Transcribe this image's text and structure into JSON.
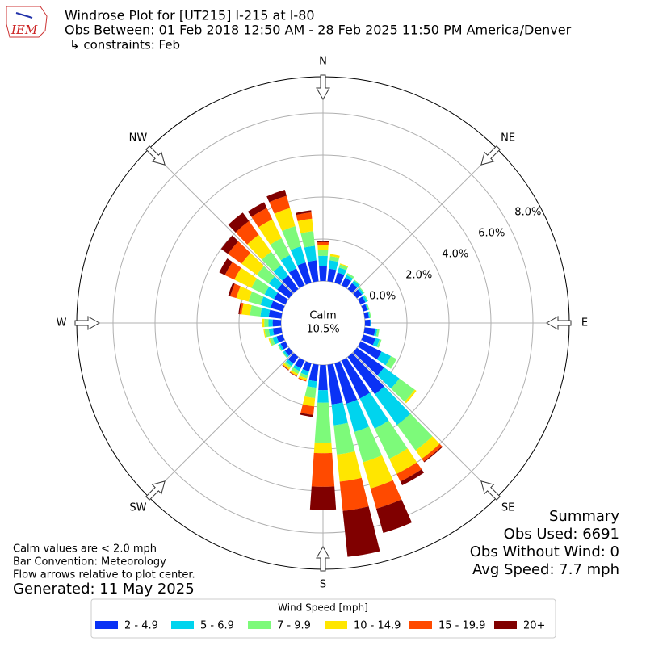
{
  "header": {
    "title": "Windrose Plot for [UT215] I-215 at I-80",
    "subtitle": "Obs Between: 01 Feb 2018 12:50 AM - 28 Feb 2025 11:50 PM America/Denver",
    "constraints": "↳ constraints: Feb",
    "logo": "IEM"
  },
  "chart_data": {
    "type": "windrose",
    "x": [
      0,
      10,
      20,
      30,
      40,
      50,
      60,
      70,
      80,
      90,
      100,
      110,
      120,
      130,
      140,
      150,
      160,
      170,
      180,
      190,
      200,
      210,
      220,
      230,
      240,
      250,
      260,
      270,
      280,
      290,
      300,
      310,
      320,
      330,
      340,
      350
    ],
    "xticks": [
      {
        "value": 0,
        "label": "N"
      },
      {
        "value": 45,
        "label": "NE"
      },
      {
        "value": 90,
        "label": "E"
      },
      {
        "value": 135,
        "label": "SE"
      },
      {
        "value": 180,
        "label": "S"
      },
      {
        "value": 225,
        "label": "SW"
      },
      {
        "value": 270,
        "label": "W"
      },
      {
        "value": 315,
        "label": "NW"
      }
    ],
    "ylim": [
      0,
      9.73
    ],
    "yticks": [
      {
        "value": 0,
        "label": "0.0%"
      },
      {
        "value": 2,
        "label": "2.0%"
      },
      {
        "value": 4,
        "label": "4.0%"
      },
      {
        "value": 6,
        "label": "6.0%"
      },
      {
        "value": 8,
        "label": "8.0%"
      }
    ],
    "grid": true,
    "calm_label": "Calm",
    "calm_value": "10.5%",
    "legend_title": "Wind Speed [mph]",
    "legend_position": "bottom",
    "series": [
      {
        "name": "2 - 4.9",
        "color": "#0a32f5",
        "values": [
          0.7,
          0.6,
          0.5,
          0.4,
          0.35,
          0.3,
          0.25,
          0.2,
          0.2,
          0.25,
          0.5,
          0.6,
          1.1,
          1.6,
          2.2,
          2.0,
          2.0,
          1.9,
          1.2,
          0.8,
          0.4,
          0.4,
          0.4,
          0.25,
          0.25,
          0.3,
          0.4,
          0.4,
          0.6,
          0.6,
          0.6,
          0.7,
          0.8,
          0.9,
          1.0,
          1.0
        ]
      },
      {
        "name": "5 - 6.9",
        "color": "#00d4ee",
        "values": [
          0.5,
          0.4,
          0.25,
          0.15,
          0.15,
          0.1,
          0.1,
          0.05,
          0.05,
          0.05,
          0.1,
          0.2,
          0.5,
          0.9,
          1.8,
          1.6,
          1.4,
          1.0,
          0.6,
          0.3,
          0.2,
          0.15,
          0.15,
          0.1,
          0.1,
          0.2,
          0.2,
          0.2,
          0.4,
          0.5,
          0.5,
          0.5,
          0.6,
          0.7,
          0.8,
          0.7
        ]
      },
      {
        "name": "7 - 9.9",
        "color": "#7dfa7a",
        "values": [
          0.3,
          0.2,
          0.15,
          0.1,
          0.05,
          0.05,
          0.05,
          0.05,
          0.05,
          0,
          0.1,
          0.1,
          0.3,
          0.9,
          1.5,
          1.6,
          1.5,
          1.4,
          1.9,
          0.5,
          0.15,
          0.15,
          0.1,
          0.05,
          0.05,
          0.15,
          0.2,
          0.2,
          0.5,
          0.6,
          0.7,
          0.7,
          0.8,
          0.9,
          1.0,
          0.7
        ]
      },
      {
        "name": "10 - 14.9",
        "color": "#ffe600",
        "values": [
          0.2,
          0.1,
          0.05,
          0,
          0,
          0,
          0,
          0,
          0,
          0,
          0,
          0,
          0,
          0.1,
          0.5,
          0.8,
          1.3,
          1.3,
          0.5,
          0.4,
          0.1,
          0.1,
          0.1,
          0,
          0,
          0.05,
          0.05,
          0.1,
          0.4,
          0.6,
          0.9,
          0.9,
          1.0,
          1.0,
          0.9,
          0.6
        ]
      },
      {
        "name": "15 - 19.9",
        "color": "#ff4a00",
        "values": [
          0.15,
          0,
          0,
          0,
          0,
          0,
          0,
          0,
          0,
          0,
          0,
          0,
          0,
          0,
          0.15,
          0.4,
          1.0,
          1.4,
          1.6,
          0.4,
          0.05,
          0.03,
          0.03,
          0,
          0,
          0,
          0,
          0,
          0.1,
          0.3,
          0.5,
          0.8,
          0.8,
          0.6,
          0.6,
          0.3
        ]
      },
      {
        "name": "20+",
        "color": "#800000",
        "values": [
          0.05,
          0,
          0,
          0,
          0,
          0,
          0,
          0,
          0,
          0,
          0,
          0,
          0,
          0,
          0.05,
          0.2,
          1.2,
          2.2,
          1.1,
          0.1,
          0,
          0.02,
          0.02,
          0,
          0,
          0,
          0,
          0,
          0.05,
          0.1,
          0.3,
          0.4,
          0.5,
          0.3,
          0.3,
          0.1
        ]
      }
    ]
  },
  "summary": {
    "title": "Summary",
    "lines": [
      "Obs Used: 6691",
      "Obs Without Wind: 0",
      "Avg Speed: 7.7 mph"
    ]
  },
  "notes": [
    "Calm values are < 2.0 mph",
    "Bar Convention: Meteorology",
    "Flow arrows relative to plot center."
  ],
  "generated": "Generated: 11 May 2025"
}
